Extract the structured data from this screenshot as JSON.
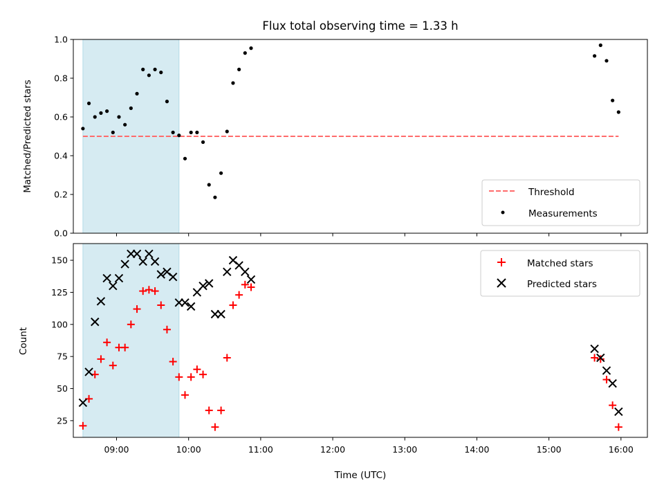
{
  "chart_data": [
    {
      "type": "scatter",
      "title": "Flux total observing time = 1.33 h",
      "ylabel": "Matched/Predicted stars",
      "xlabel": "",
      "xlim": [
        "08:24",
        "16:22"
      ],
      "ylim": [
        0,
        1.0
      ],
      "grid": false,
      "legend_position": "bottom-right",
      "yticks": [
        0.0,
        0.2,
        0.4,
        0.6,
        0.8,
        1.0
      ],
      "ytick_labels": [
        "0.0",
        "0.2",
        "0.4",
        "0.6",
        "0.8",
        "1.0"
      ],
      "shaded_region": {
        "x_start": "08:32",
        "x_end": "09:52",
        "color": "#add8e6"
      },
      "threshold": {
        "name": "Threshold",
        "y": 0.5,
        "x_start": "08:32",
        "x_end": "15:58",
        "color": "#ff6b6b",
        "style": "dashed"
      },
      "series": [
        {
          "name": "Measurements",
          "color": "#000000",
          "marker": "dot",
          "points": [
            {
              "x": "08:32",
              "y": 0.54
            },
            {
              "x": "08:37",
              "y": 0.67
            },
            {
              "x": "08:42",
              "y": 0.6
            },
            {
              "x": "08:47",
              "y": 0.62
            },
            {
              "x": "08:52",
              "y": 0.63
            },
            {
              "x": "08:57",
              "y": 0.52
            },
            {
              "x": "09:02",
              "y": 0.6
            },
            {
              "x": "09:07",
              "y": 0.56
            },
            {
              "x": "09:12",
              "y": 0.645
            },
            {
              "x": "09:17",
              "y": 0.72
            },
            {
              "x": "09:22",
              "y": 0.845
            },
            {
              "x": "09:27",
              "y": 0.815
            },
            {
              "x": "09:32",
              "y": 0.845
            },
            {
              "x": "09:37",
              "y": 0.83
            },
            {
              "x": "09:42",
              "y": 0.68
            },
            {
              "x": "09:47",
              "y": 0.52
            },
            {
              "x": "09:52",
              "y": 0.505
            },
            {
              "x": "09:57",
              "y": 0.385
            },
            {
              "x": "10:02",
              "y": 0.52
            },
            {
              "x": "10:07",
              "y": 0.52
            },
            {
              "x": "10:12",
              "y": 0.47
            },
            {
              "x": "10:17",
              "y": 0.25
            },
            {
              "x": "10:22",
              "y": 0.185
            },
            {
              "x": "10:27",
              "y": 0.31
            },
            {
              "x": "10:32",
              "y": 0.525
            },
            {
              "x": "10:37",
              "y": 0.775
            },
            {
              "x": "10:42",
              "y": 0.845
            },
            {
              "x": "10:47",
              "y": 0.93
            },
            {
              "x": "10:52",
              "y": 0.955
            },
            {
              "x": "15:38",
              "y": 0.915
            },
            {
              "x": "15:43",
              "y": 0.97
            },
            {
              "x": "15:48",
              "y": 0.89
            },
            {
              "x": "15:53",
              "y": 0.685
            },
            {
              "x": "15:58",
              "y": 0.625
            }
          ]
        }
      ]
    },
    {
      "type": "scatter",
      "title": "",
      "xlabel": "Time (UTC)",
      "ylabel": "Count",
      "xlim": [
        "08:24",
        "16:22"
      ],
      "ylim": [
        12,
        163
      ],
      "grid": false,
      "legend_position": "top-right",
      "xticks": [
        "09:00",
        "10:00",
        "11:00",
        "12:00",
        "13:00",
        "14:00",
        "15:00",
        "16:00"
      ],
      "yticks": [
        25,
        50,
        75,
        100,
        125,
        150
      ],
      "ytick_labels": [
        "25",
        "50",
        "75",
        "100",
        "125",
        "150"
      ],
      "shaded_region": {
        "x_start": "08:32",
        "x_end": "09:52",
        "color": "#add8e6"
      },
      "series": [
        {
          "name": "Matched stars",
          "color": "#ff0000",
          "marker": "plus",
          "points": [
            {
              "x": "08:32",
              "y": 21
            },
            {
              "x": "08:37",
              "y": 42
            },
            {
              "x": "08:42",
              "y": 61
            },
            {
              "x": "08:47",
              "y": 73
            },
            {
              "x": "08:52",
              "y": 86
            },
            {
              "x": "08:57",
              "y": 68
            },
            {
              "x": "09:02",
              "y": 82
            },
            {
              "x": "09:07",
              "y": 82
            },
            {
              "x": "09:12",
              "y": 100
            },
            {
              "x": "09:17",
              "y": 112
            },
            {
              "x": "09:22",
              "y": 126
            },
            {
              "x": "09:27",
              "y": 127
            },
            {
              "x": "09:32",
              "y": 126
            },
            {
              "x": "09:37",
              "y": 115
            },
            {
              "x": "09:42",
              "y": 96
            },
            {
              "x": "09:47",
              "y": 71
            },
            {
              "x": "09:52",
              "y": 59
            },
            {
              "x": "09:57",
              "y": 45
            },
            {
              "x": "10:02",
              "y": 59
            },
            {
              "x": "10:07",
              "y": 65
            },
            {
              "x": "10:12",
              "y": 61
            },
            {
              "x": "10:17",
              "y": 33
            },
            {
              "x": "10:22",
              "y": 20
            },
            {
              "x": "10:27",
              "y": 33
            },
            {
              "x": "10:32",
              "y": 74
            },
            {
              "x": "10:37",
              "y": 115
            },
            {
              "x": "10:42",
              "y": 123
            },
            {
              "x": "10:47",
              "y": 131
            },
            {
              "x": "10:52",
              "y": 129
            },
            {
              "x": "15:38",
              "y": 74
            },
            {
              "x": "15:43",
              "y": 73
            },
            {
              "x": "15:48",
              "y": 57
            },
            {
              "x": "15:53",
              "y": 37
            },
            {
              "x": "15:58",
              "y": 20
            }
          ]
        },
        {
          "name": "Predicted stars",
          "color": "#000000",
          "marker": "x",
          "points": [
            {
              "x": "08:32",
              "y": 39
            },
            {
              "x": "08:37",
              "y": 63
            },
            {
              "x": "08:42",
              "y": 102
            },
            {
              "x": "08:47",
              "y": 118
            },
            {
              "x": "08:52",
              "y": 136
            },
            {
              "x": "08:57",
              "y": 130
            },
            {
              "x": "09:02",
              "y": 136
            },
            {
              "x": "09:07",
              "y": 147
            },
            {
              "x": "09:12",
              "y": 155
            },
            {
              "x": "09:17",
              "y": 155
            },
            {
              "x": "09:22",
              "y": 149
            },
            {
              "x": "09:27",
              "y": 155
            },
            {
              "x": "09:32",
              "y": 149
            },
            {
              "x": "09:37",
              "y": 139
            },
            {
              "x": "09:42",
              "y": 141
            },
            {
              "x": "09:47",
              "y": 137
            },
            {
              "x": "09:52",
              "y": 117
            },
            {
              "x": "09:57",
              "y": 117
            },
            {
              "x": "10:02",
              "y": 114
            },
            {
              "x": "10:07",
              "y": 125
            },
            {
              "x": "10:12",
              "y": 130
            },
            {
              "x": "10:17",
              "y": 132
            },
            {
              "x": "10:22",
              "y": 108
            },
            {
              "x": "10:27",
              "y": 108
            },
            {
              "x": "10:32",
              "y": 141
            },
            {
              "x": "10:37",
              "y": 150
            },
            {
              "x": "10:42",
              "y": 146
            },
            {
              "x": "10:47",
              "y": 141
            },
            {
              "x": "10:52",
              "y": 135
            },
            {
              "x": "15:38",
              "y": 81
            },
            {
              "x": "15:43",
              "y": 74
            },
            {
              "x": "15:48",
              "y": 64
            },
            {
              "x": "15:53",
              "y": 54
            },
            {
              "x": "15:58",
              "y": 32
            }
          ]
        }
      ]
    }
  ]
}
